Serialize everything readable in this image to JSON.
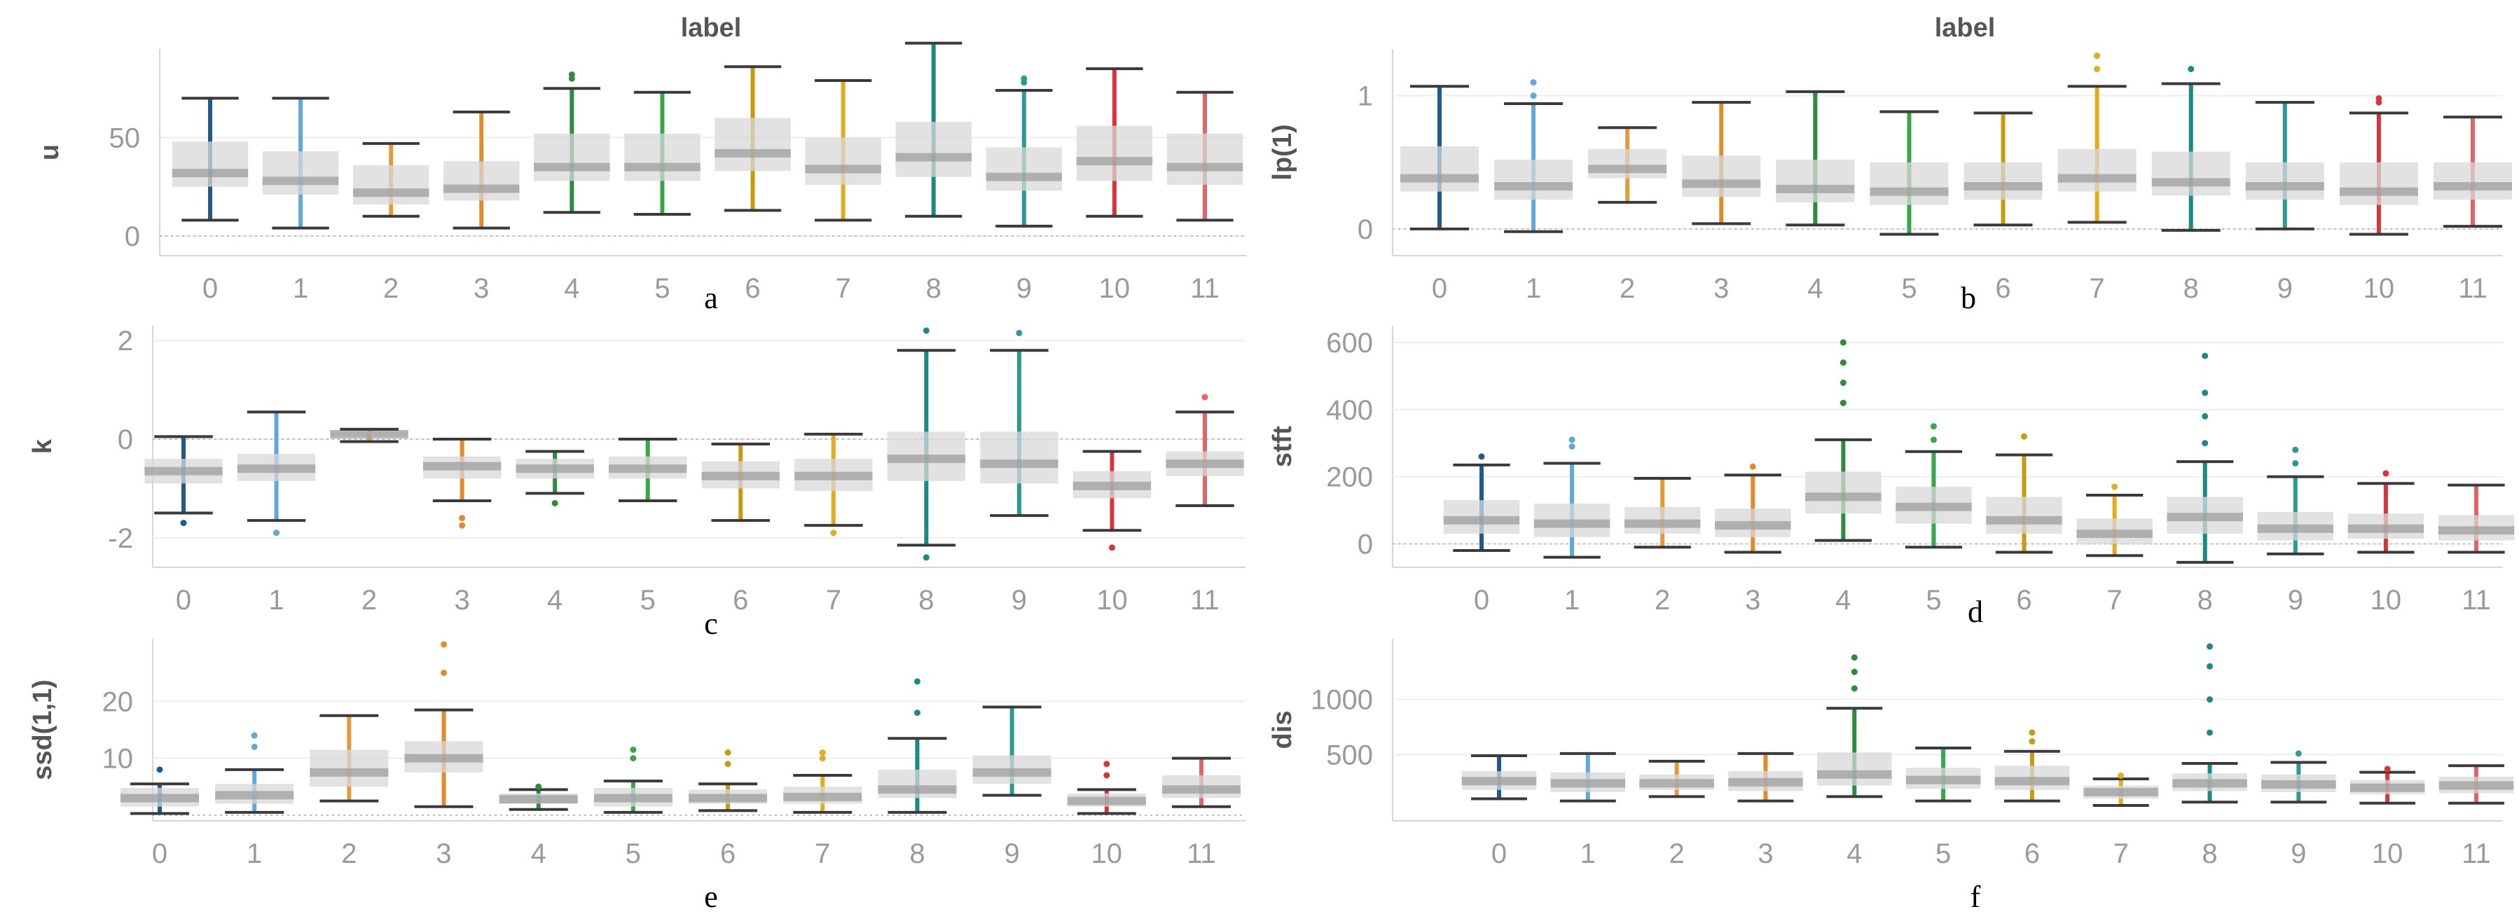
{
  "figure_title_left": "label",
  "figure_title_right": "label",
  "colors": {
    "0": "#1f5b8a",
    "1": "#5ea9d9",
    "2": "#e59a3a",
    "3": "#e08c2a",
    "4": "#2e8b3e",
    "5": "#3aa64a",
    "6": "#c89a10",
    "7": "#e2ac1c",
    "8": "#1a8a85",
    "9": "#2a9a92",
    "10": "#d9343b",
    "11": "#e0656b"
  },
  "chart_data": [
    {
      "type": "box",
      "panel": "a",
      "title": "label",
      "ylabel": "u",
      "ylim": [
        -10,
        95
      ],
      "yticks": [
        0,
        50
      ],
      "categories": [
        "0",
        "1",
        "2",
        "3",
        "4",
        "5",
        "6",
        "7",
        "8",
        "9",
        "10",
        "11"
      ],
      "boxes": [
        {
          "low": 8,
          "q1": 25,
          "median": 32,
          "q3": 48,
          "high": 70,
          "outliers": []
        },
        {
          "low": 4,
          "q1": 21,
          "median": 28,
          "q3": 43,
          "high": 70,
          "outliers": []
        },
        {
          "low": 10,
          "q1": 16,
          "median": 22,
          "q3": 36,
          "high": 47,
          "outliers": []
        },
        {
          "low": 4,
          "q1": 18,
          "median": 24,
          "q3": 38,
          "high": 63,
          "outliers": []
        },
        {
          "low": 12,
          "q1": 28,
          "median": 35,
          "q3": 52,
          "high": 75,
          "outliers": [
            80,
            82
          ]
        },
        {
          "low": 11,
          "q1": 28,
          "median": 35,
          "q3": 52,
          "high": 73,
          "outliers": []
        },
        {
          "low": 13,
          "q1": 33,
          "median": 42,
          "q3": 60,
          "high": 86,
          "outliers": []
        },
        {
          "low": 8,
          "q1": 26,
          "median": 34,
          "q3": 50,
          "high": 79,
          "outliers": []
        },
        {
          "low": 10,
          "q1": 30,
          "median": 40,
          "q3": 58,
          "high": 98,
          "outliers": []
        },
        {
          "low": 5,
          "q1": 23,
          "median": 30,
          "q3": 45,
          "high": 74,
          "outliers": [
            78,
            80
          ]
        },
        {
          "low": 10,
          "q1": 28,
          "median": 38,
          "q3": 56,
          "high": 85,
          "outliers": []
        },
        {
          "low": 8,
          "q1": 26,
          "median": 35,
          "q3": 52,
          "high": 73,
          "outliers": []
        }
      ]
    },
    {
      "type": "box",
      "panel": "b",
      "title": "label",
      "ylabel": "lp(1)",
      "ylim": [
        -0.2,
        1.35
      ],
      "yticks": [
        0,
        1
      ],
      "categories": [
        "0",
        "1",
        "2",
        "3",
        "4",
        "5",
        "6",
        "7",
        "8",
        "9",
        "10",
        "11"
      ],
      "boxes": [
        {
          "low": 0.0,
          "q1": 0.28,
          "median": 0.38,
          "q3": 0.62,
          "high": 1.07,
          "outliers": []
        },
        {
          "low": -0.02,
          "q1": 0.22,
          "median": 0.32,
          "q3": 0.52,
          "high": 0.94,
          "outliers": [
            1.0,
            1.1
          ]
        },
        {
          "low": 0.2,
          "q1": 0.38,
          "median": 0.45,
          "q3": 0.6,
          "high": 0.76,
          "outliers": []
        },
        {
          "low": 0.04,
          "q1": 0.24,
          "median": 0.34,
          "q3": 0.55,
          "high": 0.95,
          "outliers": []
        },
        {
          "low": 0.03,
          "q1": 0.2,
          "median": 0.3,
          "q3": 0.52,
          "high": 1.03,
          "outliers": []
        },
        {
          "low": -0.04,
          "q1": 0.18,
          "median": 0.28,
          "q3": 0.5,
          "high": 0.88,
          "outliers": []
        },
        {
          "low": 0.03,
          "q1": 0.22,
          "median": 0.32,
          "q3": 0.5,
          "high": 0.87,
          "outliers": []
        },
        {
          "low": 0.05,
          "q1": 0.28,
          "median": 0.38,
          "q3": 0.6,
          "high": 1.07,
          "outliers": [
            1.2,
            1.3
          ]
        },
        {
          "low": -0.01,
          "q1": 0.25,
          "median": 0.35,
          "q3": 0.58,
          "high": 1.09,
          "outliers": [
            1.2
          ]
        },
        {
          "low": 0.0,
          "q1": 0.22,
          "median": 0.32,
          "q3": 0.5,
          "high": 0.95,
          "outliers": []
        },
        {
          "low": -0.04,
          "q1": 0.18,
          "median": 0.28,
          "q3": 0.5,
          "high": 0.87,
          "outliers": [
            0.95,
            0.98
          ]
        },
        {
          "low": 0.02,
          "q1": 0.22,
          "median": 0.32,
          "q3": 0.5,
          "high": 0.84,
          "outliers": []
        }
      ]
    },
    {
      "type": "box",
      "panel": "c",
      "title": "",
      "ylabel": "k",
      "ylim": [
        -2.6,
        2.3
      ],
      "yticks": [
        -2,
        0,
        2
      ],
      "categories": [
        "0",
        "1",
        "2",
        "3",
        "4",
        "5",
        "6",
        "7",
        "8",
        "9",
        "10",
        "11"
      ],
      "boxes": [
        {
          "low": -1.5,
          "q1": -0.9,
          "median": -0.65,
          "q3": -0.4,
          "high": 0.05,
          "outliers": [
            -1.7
          ]
        },
        {
          "low": -1.65,
          "q1": -0.85,
          "median": -0.6,
          "q3": -0.3,
          "high": 0.55,
          "outliers": [
            -1.9
          ]
        },
        {
          "low": -0.05,
          "q1": 0.05,
          "median": 0.1,
          "q3": 0.15,
          "high": 0.2,
          "outliers": []
        },
        {
          "low": -1.25,
          "q1": -0.8,
          "median": -0.55,
          "q3": -0.35,
          "high": 0.0,
          "outliers": [
            -1.6,
            -1.75
          ]
        },
        {
          "low": -1.1,
          "q1": -0.8,
          "median": -0.6,
          "q3": -0.4,
          "high": -0.25,
          "outliers": [
            -1.3
          ]
        },
        {
          "low": -1.25,
          "q1": -0.8,
          "median": -0.6,
          "q3": -0.35,
          "high": 0.0,
          "outliers": []
        },
        {
          "low": -1.65,
          "q1": -1.0,
          "median": -0.75,
          "q3": -0.45,
          "high": -0.1,
          "outliers": []
        },
        {
          "low": -1.75,
          "q1": -1.05,
          "median": -0.75,
          "q3": -0.4,
          "high": 0.1,
          "outliers": [
            -1.9
          ]
        },
        {
          "low": -2.15,
          "q1": -0.85,
          "median": -0.4,
          "q3": 0.15,
          "high": 1.8,
          "outliers": [
            2.2,
            -2.4
          ]
        },
        {
          "low": -1.55,
          "q1": -0.9,
          "median": -0.5,
          "q3": 0.15,
          "high": 1.8,
          "outliers": [
            2.15
          ]
        },
        {
          "low": -1.85,
          "q1": -1.2,
          "median": -0.95,
          "q3": -0.65,
          "high": -0.25,
          "outliers": [
            -2.2
          ]
        },
        {
          "low": -1.35,
          "q1": -0.75,
          "median": -0.5,
          "q3": -0.25,
          "high": 0.55,
          "outliers": [
            0.85
          ]
        }
      ]
    },
    {
      "type": "box",
      "panel": "d",
      "title": "",
      "ylabel": "stft",
      "ylim": [
        -70,
        650
      ],
      "yticks": [
        0,
        200,
        400,
        600
      ],
      "categories": [
        "0",
        "1",
        "2",
        "3",
        "4",
        "5",
        "6",
        "7",
        "8",
        "9",
        "10",
        "11"
      ],
      "boxes": [
        {
          "low": -20,
          "q1": 30,
          "median": 70,
          "q3": 130,
          "high": 235,
          "outliers": [
            260
          ]
        },
        {
          "low": -40,
          "q1": 20,
          "median": 60,
          "q3": 120,
          "high": 240,
          "outliers": [
            290,
            310
          ]
        },
        {
          "low": -10,
          "q1": 30,
          "median": 60,
          "q3": 110,
          "high": 195,
          "outliers": []
        },
        {
          "low": -25,
          "q1": 20,
          "median": 55,
          "q3": 105,
          "high": 205,
          "outliers": [
            230
          ]
        },
        {
          "low": 10,
          "q1": 90,
          "median": 140,
          "q3": 215,
          "high": 310,
          "outliers": [
            420,
            480,
            540,
            600
          ]
        },
        {
          "low": -10,
          "q1": 60,
          "median": 110,
          "q3": 170,
          "high": 275,
          "outliers": [
            310,
            350
          ]
        },
        {
          "low": -25,
          "q1": 30,
          "median": 70,
          "q3": 140,
          "high": 265,
          "outliers": [
            320
          ]
        },
        {
          "low": -35,
          "q1": 0,
          "median": 30,
          "q3": 75,
          "high": 145,
          "outliers": [
            170
          ]
        },
        {
          "low": -55,
          "q1": 30,
          "median": 80,
          "q3": 140,
          "high": 245,
          "outliers": [
            300,
            380,
            450,
            560
          ]
        },
        {
          "low": -30,
          "q1": 10,
          "median": 45,
          "q3": 95,
          "high": 200,
          "outliers": [
            240,
            280
          ]
        },
        {
          "low": -25,
          "q1": 15,
          "median": 45,
          "q3": 90,
          "high": 180,
          "outliers": [
            210
          ]
        },
        {
          "low": -25,
          "q1": 10,
          "median": 40,
          "q3": 85,
          "high": 175,
          "outliers": []
        }
      ]
    },
    {
      "type": "box",
      "panel": "e",
      "title": "",
      "ylabel": "ssd(1,1)",
      "ylim": [
        -1,
        31
      ],
      "yticks": [
        10,
        20
      ],
      "categories": [
        "0",
        "1",
        "2",
        "3",
        "4",
        "5",
        "6",
        "7",
        "8",
        "9",
        "10",
        "11"
      ],
      "boxes": [
        {
          "low": 0.3,
          "q1": 1.5,
          "median": 3,
          "q3": 4.8,
          "high": 5.5,
          "outliers": [
            8
          ]
        },
        {
          "low": 0.5,
          "q1": 2,
          "median": 3.5,
          "q3": 5.5,
          "high": 8,
          "outliers": [
            12,
            14
          ]
        },
        {
          "low": 2.5,
          "q1": 5,
          "median": 7.5,
          "q3": 11.5,
          "high": 17.5,
          "outliers": []
        },
        {
          "low": 1.5,
          "q1": 7.5,
          "median": 10,
          "q3": 13,
          "high": 18.5,
          "outliers": [
            25,
            30
          ]
        },
        {
          "low": 1,
          "q1": 2,
          "median": 2.8,
          "q3": 3.8,
          "high": 4.5,
          "outliers": [
            5
          ]
        },
        {
          "low": 0.5,
          "q1": 1.5,
          "median": 3,
          "q3": 4.8,
          "high": 6,
          "outliers": [
            10,
            11.5
          ]
        },
        {
          "low": 0.8,
          "q1": 2,
          "median": 3,
          "q3": 4.5,
          "high": 5.5,
          "outliers": [
            9,
            11
          ]
        },
        {
          "low": 0.5,
          "q1": 2,
          "median": 3.2,
          "q3": 5,
          "high": 7,
          "outliers": [
            10,
            11
          ]
        },
        {
          "low": 0.5,
          "q1": 3,
          "median": 4.5,
          "q3": 8,
          "high": 13.5,
          "outliers": [
            18,
            23.5
          ]
        },
        {
          "low": 3.5,
          "q1": 5.5,
          "median": 7.5,
          "q3": 10.5,
          "high": 19,
          "outliers": []
        },
        {
          "low": 0.3,
          "q1": 1.5,
          "median": 2.5,
          "q3": 3.8,
          "high": 4.5,
          "outliers": [
            7,
            9
          ]
        },
        {
          "low": 1.5,
          "q1": 3,
          "median": 4.5,
          "q3": 7,
          "high": 10,
          "outliers": []
        }
      ]
    },
    {
      "type": "box",
      "panel": "f",
      "title": "",
      "ylabel": "dis",
      "ylim": [
        -100,
        1550
      ],
      "yticks": [
        500,
        1000
      ],
      "categories": [
        "0",
        "1",
        "2",
        "3",
        "4",
        "5",
        "6",
        "7",
        "8",
        "9",
        "10",
        "11"
      ],
      "boxes": [
        {
          "low": 100,
          "q1": 180,
          "median": 260,
          "q3": 350,
          "high": 490,
          "outliers": []
        },
        {
          "low": 80,
          "q1": 160,
          "median": 240,
          "q3": 340,
          "high": 510,
          "outliers": []
        },
        {
          "low": 120,
          "q1": 180,
          "median": 240,
          "q3": 320,
          "high": 440,
          "outliers": []
        },
        {
          "low": 80,
          "q1": 170,
          "median": 250,
          "q3": 350,
          "high": 510,
          "outliers": []
        },
        {
          "low": 120,
          "q1": 220,
          "median": 320,
          "q3": 520,
          "high": 920,
          "outliers": [
            1100,
            1250,
            1380
          ]
        },
        {
          "low": 80,
          "q1": 190,
          "median": 270,
          "q3": 380,
          "high": 560,
          "outliers": []
        },
        {
          "low": 80,
          "q1": 180,
          "median": 260,
          "q3": 400,
          "high": 530,
          "outliers": [
            620,
            700
          ]
        },
        {
          "low": 40,
          "q1": 100,
          "median": 160,
          "q3": 220,
          "high": 280,
          "outliers": [
            310
          ]
        },
        {
          "low": 70,
          "q1": 170,
          "median": 240,
          "q3": 330,
          "high": 420,
          "outliers": [
            700,
            1000,
            1300,
            1480
          ]
        },
        {
          "low": 70,
          "q1": 160,
          "median": 230,
          "q3": 320,
          "high": 430,
          "outliers": [
            510
          ]
        },
        {
          "low": 60,
          "q1": 140,
          "median": 200,
          "q3": 270,
          "high": 340,
          "outliers": [
            370
          ]
        },
        {
          "low": 60,
          "q1": 150,
          "median": 220,
          "q3": 300,
          "high": 400,
          "outliers": []
        }
      ]
    }
  ]
}
